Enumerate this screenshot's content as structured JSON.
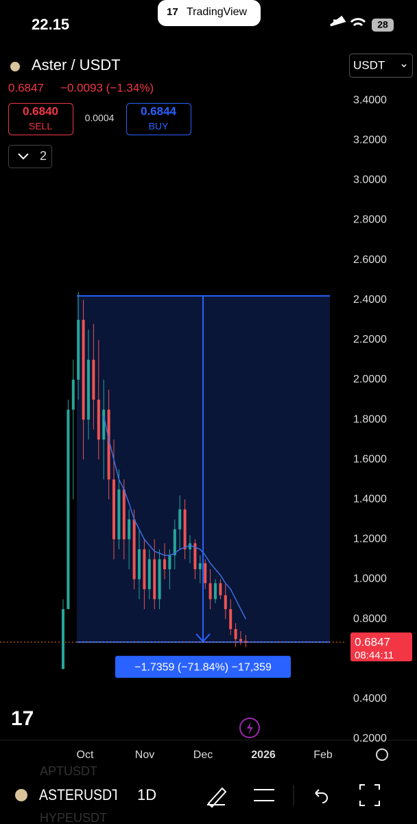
{
  "status_bar": {
    "time": "22.15",
    "app": "TradingView",
    "battery": "28"
  },
  "header": {
    "symbol": "Aster / USDT",
    "price": "0.6847",
    "change": "−0.0093 (−1.34%)",
    "sell_price": "0.6840",
    "sell_label": "SELL",
    "spread": "0.0004",
    "buy_price": "0.6844",
    "buy_label": "BUY",
    "indicators_count": "2",
    "currency": "USDT"
  },
  "chart_data": {
    "type": "candlestick",
    "candles": [
      [
        0.55,
        0.9,
        0.55,
        0.85
      ],
      [
        0.85,
        1.9,
        0.85,
        1.85
      ],
      [
        1.85,
        2.1,
        1.4,
        2.0
      ],
      [
        2.0,
        2.44,
        1.9,
        2.3
      ],
      [
        2.3,
        2.4,
        1.6,
        1.8
      ],
      [
        1.8,
        2.25,
        1.7,
        2.1
      ],
      [
        2.1,
        2.28,
        1.75,
        1.9
      ],
      [
        1.9,
        2.2,
        1.6,
        1.7
      ],
      [
        1.7,
        2.0,
        1.5,
        1.85
      ],
      [
        1.85,
        1.95,
        1.4,
        1.5
      ],
      [
        1.5,
        1.7,
        1.1,
        1.2
      ],
      [
        1.2,
        1.55,
        1.15,
        1.45
      ],
      [
        1.45,
        1.5,
        1.1,
        1.2
      ],
      [
        1.2,
        1.35,
        1.05,
        1.3
      ],
      [
        1.3,
        1.35,
        0.95,
        1.0
      ],
      [
        1.0,
        1.25,
        0.9,
        1.15
      ],
      [
        1.15,
        1.2,
        0.85,
        0.95
      ],
      [
        0.95,
        1.15,
        0.9,
        1.1
      ],
      [
        1.1,
        1.2,
        0.85,
        0.9
      ],
      [
        0.9,
        1.15,
        0.85,
        1.1
      ],
      [
        1.1,
        1.18,
        1.0,
        1.05
      ],
      [
        1.05,
        1.15,
        0.95,
        1.12
      ],
      [
        1.12,
        1.3,
        1.05,
        1.25
      ],
      [
        1.25,
        1.42,
        1.15,
        1.35
      ],
      [
        1.35,
        1.4,
        1.1,
        1.15
      ],
      [
        1.15,
        1.22,
        1.08,
        1.18
      ],
      [
        1.18,
        1.2,
        1.0,
        1.05
      ],
      [
        1.05,
        1.12,
        0.98,
        1.08
      ],
      [
        1.08,
        1.1,
        0.95,
        0.98
      ],
      [
        0.98,
        1.05,
        0.85,
        0.9
      ],
      [
        0.9,
        1.0,
        0.88,
        0.98
      ],
      [
        0.98,
        1.0,
        0.9,
        0.92
      ],
      [
        0.92,
        0.98,
        0.8,
        0.85
      ],
      [
        0.85,
        0.9,
        0.72,
        0.75
      ],
      [
        0.75,
        0.78,
        0.66,
        0.7
      ],
      [
        0.7,
        0.74,
        0.67,
        0.69
      ],
      [
        0.69,
        0.72,
        0.66,
        0.6847
      ]
    ],
    "moving_average": [
      null,
      null,
      null,
      null,
      null,
      null,
      null,
      null,
      1.82,
      1.7,
      1.6,
      1.5,
      1.45,
      1.38,
      1.3,
      1.25,
      1.2,
      1.17,
      1.14,
      1.13,
      1.12,
      1.12,
      1.13,
      1.15,
      1.16,
      1.17,
      1.16,
      1.15,
      1.12,
      1.08,
      1.05,
      1.02,
      0.98,
      0.95,
      0.9,
      0.85,
      0.8
    ],
    "up_color": "#26a69a",
    "down_color": "#ef5350",
    "ma_color": "#3d6fe0",
    "ylim": [
      0.2,
      3.6
    ],
    "yticks": [
      {
        "value": 0.2,
        "label": "0.2000"
      },
      {
        "value": 0.4,
        "label": "0.4000"
      },
      {
        "value": 0.8,
        "label": "0.8000"
      },
      {
        "value": 1.0,
        "label": "1.0000"
      },
      {
        "value": 1.2,
        "label": "1.2000"
      },
      {
        "value": 1.4,
        "label": "1.4000"
      },
      {
        "value": 1.6,
        "label": "1.6000"
      },
      {
        "value": 1.8,
        "label": "1.8000"
      },
      {
        "value": 2.0,
        "label": "2.0000"
      },
      {
        "value": 2.2,
        "label": "2.2000"
      },
      {
        "value": 2.4,
        "label": "2.4000"
      },
      {
        "value": 2.6,
        "label": "2.6000"
      },
      {
        "value": 2.8,
        "label": "2.8000"
      },
      {
        "value": 3.0,
        "label": "3.0000"
      },
      {
        "value": 3.2,
        "label": "3.2000"
      },
      {
        "value": 3.4,
        "label": "3.4000"
      }
    ],
    "xticks": [
      "Oct",
      "Nov",
      "Dec",
      "2026",
      "Feb"
    ],
    "measure": {
      "top": 2.42,
      "bottom": 0.6847,
      "label": "−1.7359 (−71.84%) −17,359"
    },
    "last_price": 0.6847,
    "countdown": "08:44:11"
  },
  "toolbar": {
    "symbol": "ASTERUSDT",
    "interval": "1D",
    "list_above": "APTUSDT",
    "list_below": "HYPEUSDT"
  }
}
